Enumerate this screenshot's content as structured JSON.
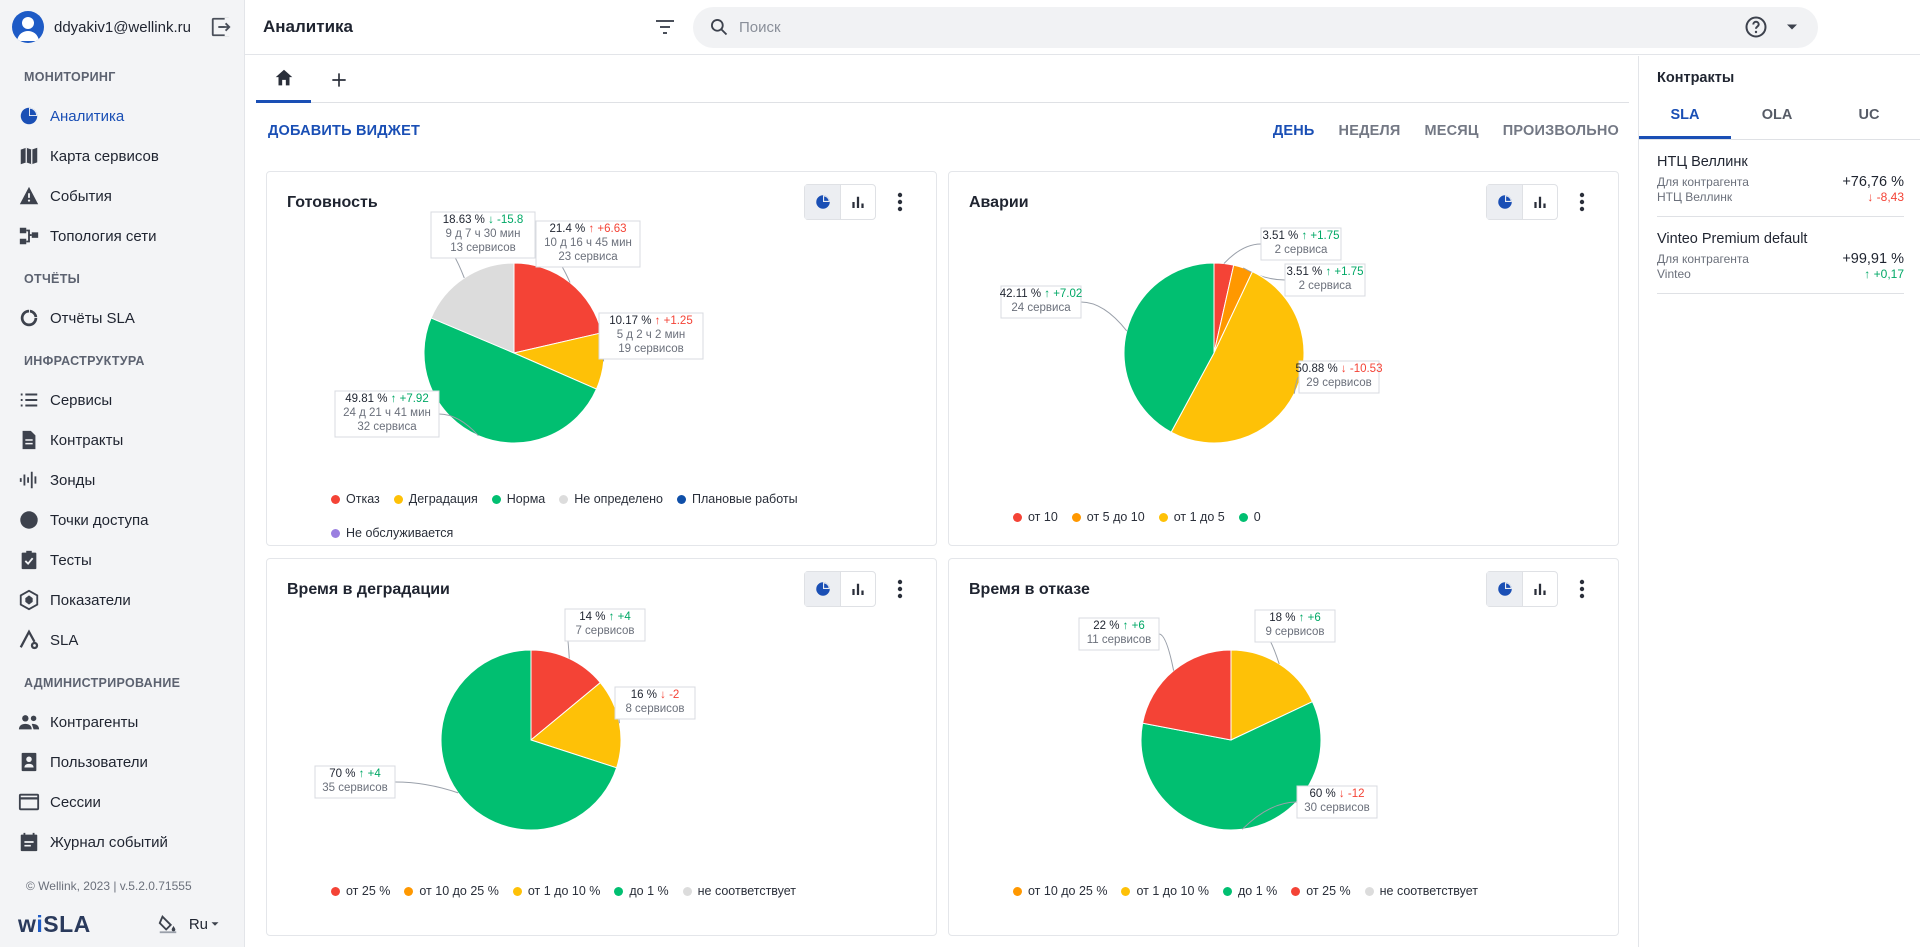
{
  "user": {
    "email": "ddyakiv1@wellink.ru"
  },
  "sidebar": {
    "sections": [
      {
        "title": "МОНИТОРИНГ",
        "items": [
          {
            "label": "Аналитика",
            "icon": "pie-chart-icon",
            "active": true
          },
          {
            "label": "Карта сервисов",
            "icon": "map-icon"
          },
          {
            "label": "События",
            "icon": "warning-icon"
          },
          {
            "label": "Топология сети",
            "icon": "topology-icon"
          }
        ]
      },
      {
        "title": "ОТЧЁТЫ",
        "items": [
          {
            "label": "Отчёты SLA",
            "icon": "report-icon"
          }
        ]
      },
      {
        "title": "ИНФРАСТРУКТУРА",
        "items": [
          {
            "label": "Сервисы",
            "icon": "list-icon"
          },
          {
            "label": "Контракты",
            "icon": "document-icon"
          },
          {
            "label": "Зонды",
            "icon": "probe-icon"
          },
          {
            "label": "Точки доступа",
            "icon": "circle-icon"
          },
          {
            "label": "Тесты",
            "icon": "checklist-icon"
          },
          {
            "label": "Показатели",
            "icon": "metrics-icon"
          },
          {
            "label": "SLA",
            "icon": "sla-icon"
          }
        ]
      },
      {
        "title": "АДМИНИСТРИРОВАНИЕ",
        "items": [
          {
            "label": "Контрагенты",
            "icon": "people-icon"
          },
          {
            "label": "Пользователи",
            "icon": "user-card-icon"
          },
          {
            "label": "Сессии",
            "icon": "window-icon"
          },
          {
            "label": "Журнал событий",
            "icon": "journal-icon"
          }
        ]
      }
    ],
    "copyright": "© Wellink, 2023 | v.5.2.0.71555",
    "logo": {
      "pre": "w",
      "accent": "i",
      "post": "SLA"
    },
    "language": "Ru"
  },
  "header": {
    "title": "Аналитика",
    "search_placeholder": "Поиск"
  },
  "toolbar": {
    "add_widget": "ДОБАВИТЬ ВИДЖЕТ",
    "periods": [
      {
        "label": "ДЕНЬ",
        "active": true
      },
      {
        "label": "НЕДЕЛЯ"
      },
      {
        "label": "МЕСЯЦ"
      },
      {
        "label": "ПРОИЗВОЛЬНО"
      }
    ]
  },
  "colors": {
    "red": "#f44336",
    "yellow": "#fec107",
    "green": "#01bf71",
    "grey": "#dcdcdc",
    "blue": "#0f4fa8",
    "purple": "#9a7fe0",
    "orange": "#ff9800",
    "accent": "#1a4fb5"
  },
  "chart_data": [
    {
      "type": "pie",
      "title": "Готовность",
      "slices": [
        {
          "name": "Отказ",
          "percent": "21.4 %",
          "delta": "+6.63",
          "direction": "up",
          "good": false,
          "duration": "10 д 16 ч 45 мин",
          "count": "23 сервиса",
          "value": 21.4,
          "color": "#f44336"
        },
        {
          "name": "Деградация",
          "percent": "10.17 %",
          "delta": "+1.25",
          "direction": "up",
          "good": false,
          "duration": "5 д 2 ч 2 мин",
          "count": "19 сервисов",
          "value": 10.17,
          "color": "#fec107"
        },
        {
          "name": "Норма",
          "percent": "49.81 %",
          "delta": "+7.92",
          "direction": "up",
          "good": true,
          "duration": "24 д 21 ч 41 мин",
          "count": "32 сервиса",
          "value": 49.81,
          "color": "#01bf71"
        },
        {
          "name": "Не определено",
          "percent": "18.63 %",
          "delta": "-15.8",
          "direction": "down",
          "good": true,
          "duration": "9 д 7 ч 30 мин",
          "count": "13 сервисов",
          "value": 18.63,
          "color": "#dcdcdc"
        }
      ],
      "legend": [
        {
          "label": "Отказ",
          "color": "#f44336"
        },
        {
          "label": "Деградация",
          "color": "#fec107"
        },
        {
          "label": "Норма",
          "color": "#01bf71"
        },
        {
          "label": "Не определено",
          "color": "#dcdcdc"
        },
        {
          "label": "Плановые работы",
          "color": "#0f4fa8"
        },
        {
          "label": "Не обслуживается",
          "color": "#9a7fe0"
        }
      ]
    },
    {
      "type": "pie",
      "title": "Аварии",
      "slices": [
        {
          "name": "от 10",
          "percent": "3.51 %",
          "delta": "+1.75",
          "direction": "up",
          "good": true,
          "count": "2 сервиса",
          "value": 3.51,
          "color": "#f44336"
        },
        {
          "name": "от 5 до 10",
          "percent": "3.51 %",
          "delta": "+1.75",
          "direction": "up",
          "good": true,
          "count": "2 сервиса",
          "value": 3.51,
          "color": "#ff9800"
        },
        {
          "name": "от 1 до 5",
          "percent": "50.88 %",
          "delta": "-10.53",
          "direction": "down",
          "good": false,
          "count": "29 сервисов",
          "value": 50.88,
          "color": "#fec107"
        },
        {
          "name": "0",
          "percent": "42.11 %",
          "delta": "+7.02",
          "direction": "up",
          "good": true,
          "count": "24 сервиса",
          "value": 42.11,
          "color": "#01bf71"
        }
      ],
      "legend": [
        {
          "label": "от 10",
          "color": "#f44336"
        },
        {
          "label": "от 5 до 10",
          "color": "#ff9800"
        },
        {
          "label": "от 1 до 5",
          "color": "#fec107"
        },
        {
          "label": "0",
          "color": "#01bf71"
        }
      ]
    },
    {
      "type": "pie",
      "title": "Время в деградации",
      "slices": [
        {
          "name": "от 25 %",
          "percent": "14 %",
          "delta": "+4",
          "direction": "up",
          "good": true,
          "count": "7 сервисов",
          "value": 14,
          "color": "#f44336"
        },
        {
          "name": "от 1 до 10 %",
          "percent": "16 %",
          "delta": "-2",
          "direction": "down",
          "good": false,
          "count": "8 сервисов",
          "value": 16,
          "color": "#fec107"
        },
        {
          "name": "до 1 %",
          "percent": "70 %",
          "delta": "+4",
          "direction": "up",
          "good": true,
          "count": "35 сервисов",
          "value": 70,
          "color": "#01bf71"
        }
      ],
      "legend": [
        {
          "label": "от 25 %",
          "color": "#f44336"
        },
        {
          "label": "от 10 до 25 %",
          "color": "#ff9800"
        },
        {
          "label": "от 1 до 10 %",
          "color": "#fec107"
        },
        {
          "label": "до 1 %",
          "color": "#01bf71"
        },
        {
          "label": "не соответствует",
          "color": "#dcdcdc"
        }
      ]
    },
    {
      "type": "pie",
      "title": "Время в отказе",
      "slices": [
        {
          "name": "от 1 до 10 %",
          "percent": "18 %",
          "delta": "+6",
          "direction": "up",
          "good": true,
          "count": "9 сервисов",
          "value": 18,
          "color": "#fec107"
        },
        {
          "name": "до 1 %",
          "percent": "60 %",
          "delta": "-12",
          "direction": "down",
          "good": false,
          "count": "30 сервисов",
          "value": 60,
          "color": "#01bf71"
        },
        {
          "name": "от 25 %",
          "percent": "22 %",
          "delta": "+6",
          "direction": "up",
          "good": true,
          "count": "11 сервисов",
          "value": 22,
          "color": "#f44336"
        }
      ],
      "legend": [
        {
          "label": "от 10 до 25 %",
          "color": "#ff9800"
        },
        {
          "label": "от 1 до 10 %",
          "color": "#fec107"
        },
        {
          "label": "до 1 %",
          "color": "#01bf71"
        },
        {
          "label": "от 25 %",
          "color": "#f44336"
        },
        {
          "label": "не соответствует",
          "color": "#dcdcdc"
        }
      ]
    }
  ],
  "contracts": {
    "title": "Контракты",
    "tabs": [
      {
        "label": "SLA",
        "active": true
      },
      {
        "label": "OLA"
      },
      {
        "label": "UC"
      }
    ],
    "items": [
      {
        "name": "НТЦ Веллинк",
        "sub1": "Для контрагента",
        "sub2": "НТЦ Веллинк",
        "value": "+76,76 %",
        "delta": "↓ -8,43",
        "good": false
      },
      {
        "name": "Vinteo Premium default",
        "sub1": "Для контрагента",
        "sub2": "Vinteo",
        "value": "+99,91 %",
        "delta": "↑ +0,17",
        "good": true
      }
    ]
  }
}
